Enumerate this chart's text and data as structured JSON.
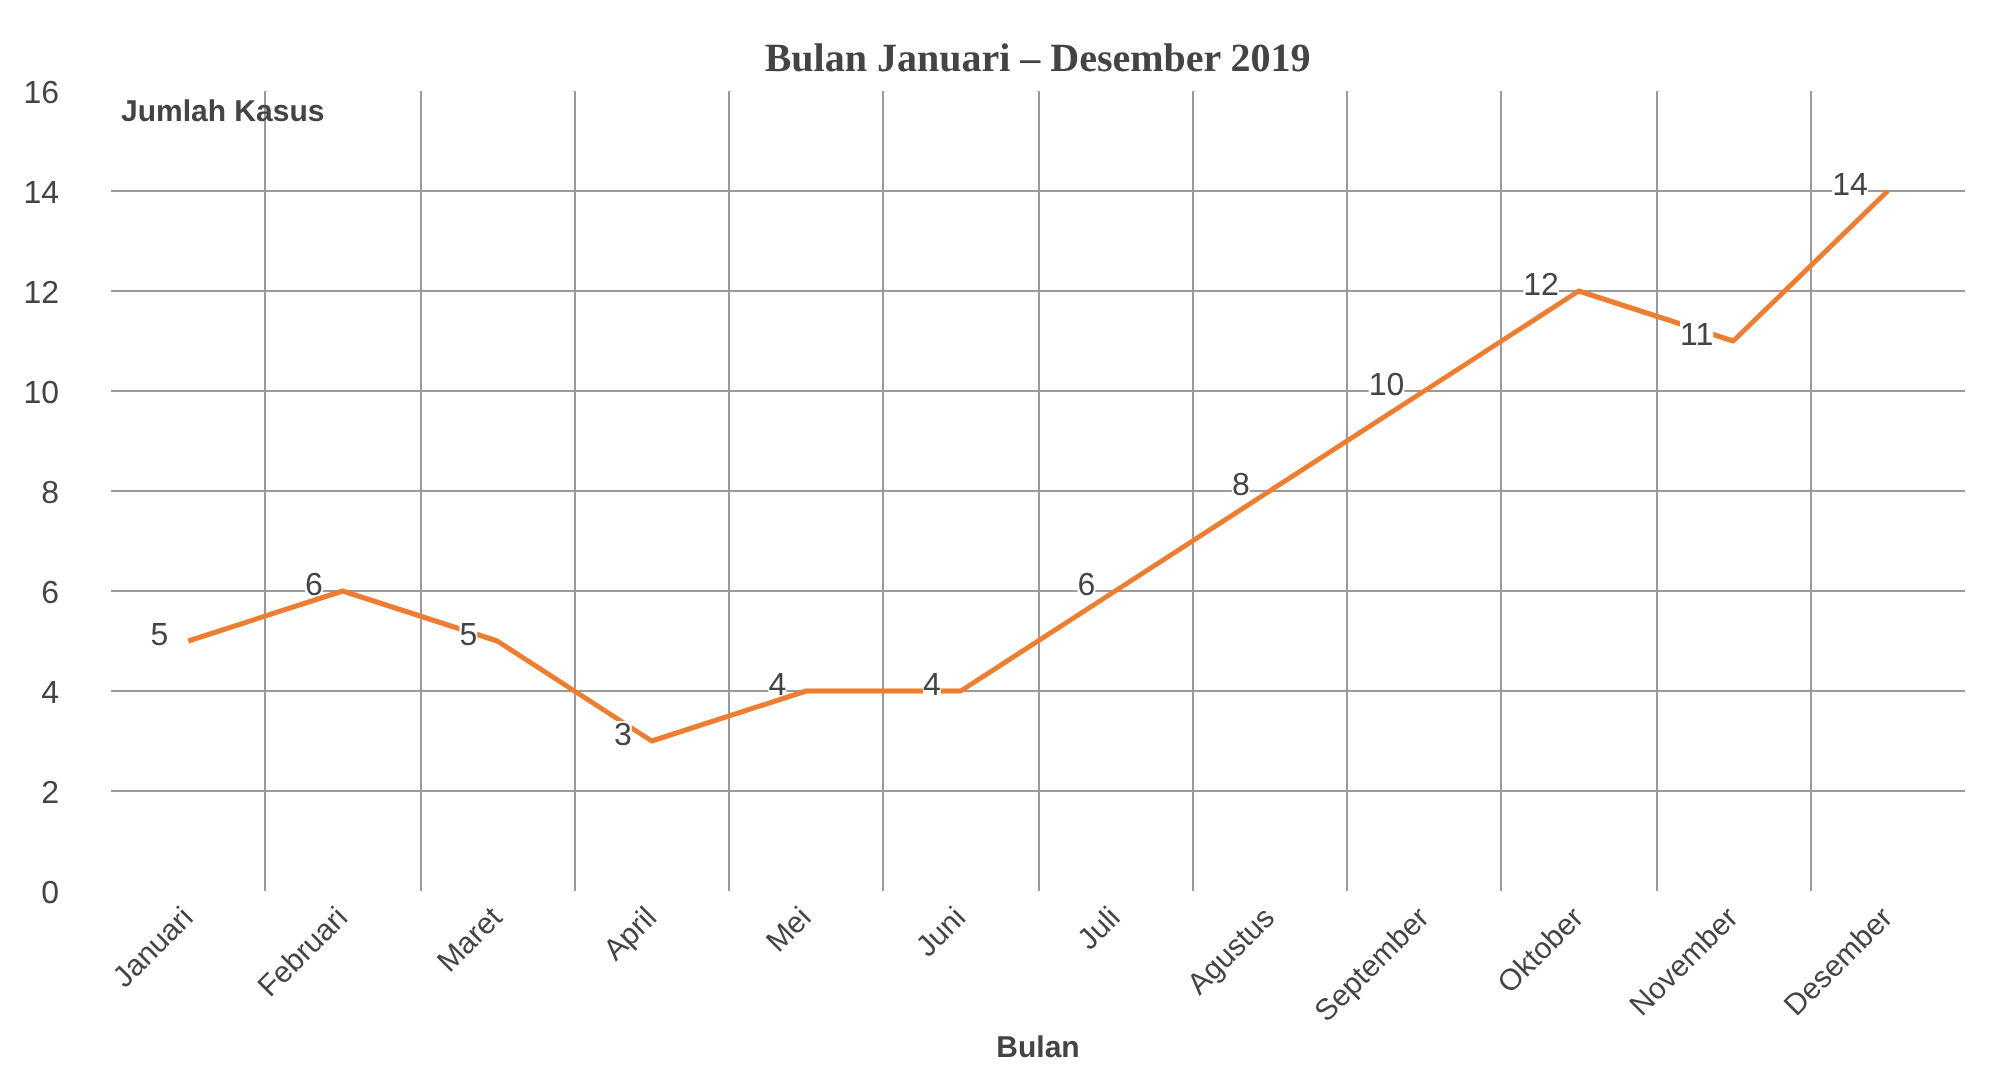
{
  "chart_data": {
    "type": "line",
    "title": "Bulan Januari – Desember 2019",
    "xlabel": "Bulan",
    "ylabel": "Jumlah Kasus",
    "categories": [
      "Januari",
      "Februari",
      "Maret",
      "April",
      "Mei",
      "Juni",
      "Juli",
      "Agustus",
      "September",
      "Oktober",
      "November",
      "Desember"
    ],
    "series": [
      {
        "color": "#ed7d31",
        "values": [
          5,
          6,
          5,
          3,
          4,
          4,
          6,
          8,
          10,
          12,
          11,
          14
        ]
      }
    ],
    "ylim": [
      0,
      16
    ],
    "yticks": [
      0,
      2,
      4,
      6,
      8,
      10,
      12,
      14,
      16
    ],
    "grid": true,
    "data_labels": true
  }
}
